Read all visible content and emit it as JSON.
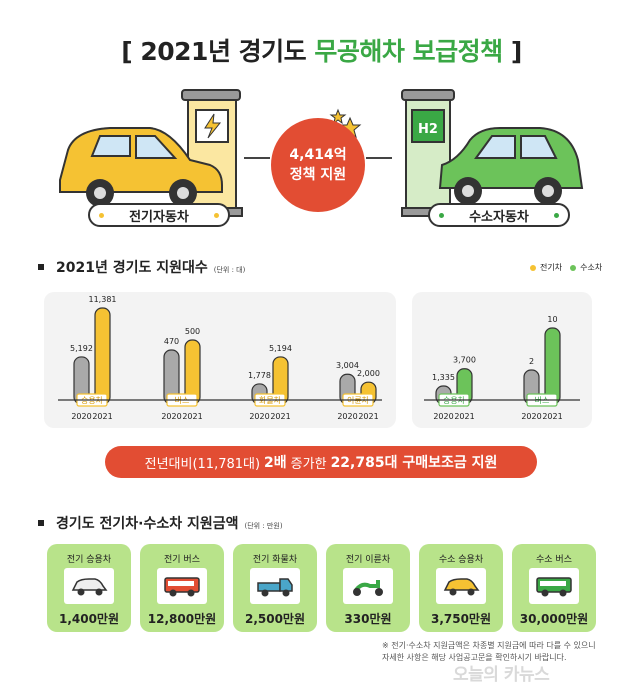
{
  "title": {
    "bracket_open": "[",
    "plain": "2021년 경기도",
    "highlight": "무공해차 보급정책",
    "bracket_close": "]"
  },
  "hero": {
    "left_pill": "전기자동차",
    "right_pill": "수소자동차",
    "badge_line1": "4,414억",
    "badge_line2": "정책 지원",
    "h2_label": "H2"
  },
  "section1": {
    "title": "2021년 경기도 지원대수",
    "unit": "(단위 : 대)",
    "legend_ev": "전기차",
    "legend_h2": "수소차"
  },
  "chart_data": {
    "type": "bar",
    "title": "2021년 경기도 지원대수",
    "unit": "(단위 : 대)",
    "x": [
      "2020",
      "2021"
    ],
    "groups": [
      {
        "category": "승용차",
        "fuel": "전기차",
        "values": {
          "2020": 5192,
          "2021": 11381
        },
        "labels": [
          "5,192",
          "11,381"
        ]
      },
      {
        "category": "버스",
        "fuel": "전기차",
        "values": {
          "2020": 470,
          "2021": 500
        },
        "labels": [
          "470",
          "500"
        ]
      },
      {
        "category": "화물차",
        "fuel": "전기차",
        "values": {
          "2020": 1778,
          "2021": 5194
        },
        "labels": [
          "1,778",
          "5,194"
        ]
      },
      {
        "category": "이륜차",
        "fuel": "전기차",
        "values": {
          "2020": 3004,
          "2021": 2000
        },
        "labels": [
          "3,004",
          "2,000"
        ]
      },
      {
        "category": "승용차",
        "fuel": "수소차",
        "values": {
          "2020": 1335,
          "2021": 3700
        },
        "labels": [
          "1,335",
          "3,700"
        ]
      },
      {
        "category": "버스",
        "fuel": "수소차",
        "values": {
          "2020": 2,
          "2021": 10
        },
        "labels": [
          "2",
          "10"
        ]
      }
    ],
    "legend": [
      "전기차",
      "수소차"
    ],
    "legend_position": "top-right",
    "colors": {
      "2020": "#a9a9a9",
      "전기차": "#f5c233",
      "수소차": "#6cc35a"
    }
  },
  "banner": {
    "part1": "전년대비(11,781대)",
    "part2": "2배",
    "part3": "증가한",
    "part4": "22,785대 구매보조금 지원"
  },
  "section2": {
    "title": "경기도 전기차·수소차 지원금액",
    "unit": "(단위 : 만원)",
    "cards": [
      {
        "label": "전기 승용차",
        "value": "1,400만원",
        "icon": "car-icon"
      },
      {
        "label": "전기 버스",
        "value": "12,800만원",
        "icon": "bus-icon"
      },
      {
        "label": "전기 화물차",
        "value": "2,500만원",
        "icon": "truck-icon"
      },
      {
        "label": "전기 이륜차",
        "value": "330만원",
        "icon": "scooter-icon"
      },
      {
        "label": "수소 승용차",
        "value": "3,750만원",
        "icon": "car-icon"
      },
      {
        "label": "수소 버스",
        "value": "30,000만원",
        "icon": "bus-icon"
      }
    ]
  },
  "footnote": {
    "line1": "※ 전기·수소차 지원금액은 차종별 지원금에 따라 다를 수 있으니",
    "line2": "자세한 사항은 해당 사업공고문을 확인하시기 바랍니다."
  },
  "watermark": "오늘의 카뉴스",
  "colors": {
    "accent_red": "#e24d33",
    "accent_green": "#3aa845",
    "ev_yellow": "#f5c233",
    "h2_green": "#6cc35a",
    "card_green": "#b8e38a"
  }
}
